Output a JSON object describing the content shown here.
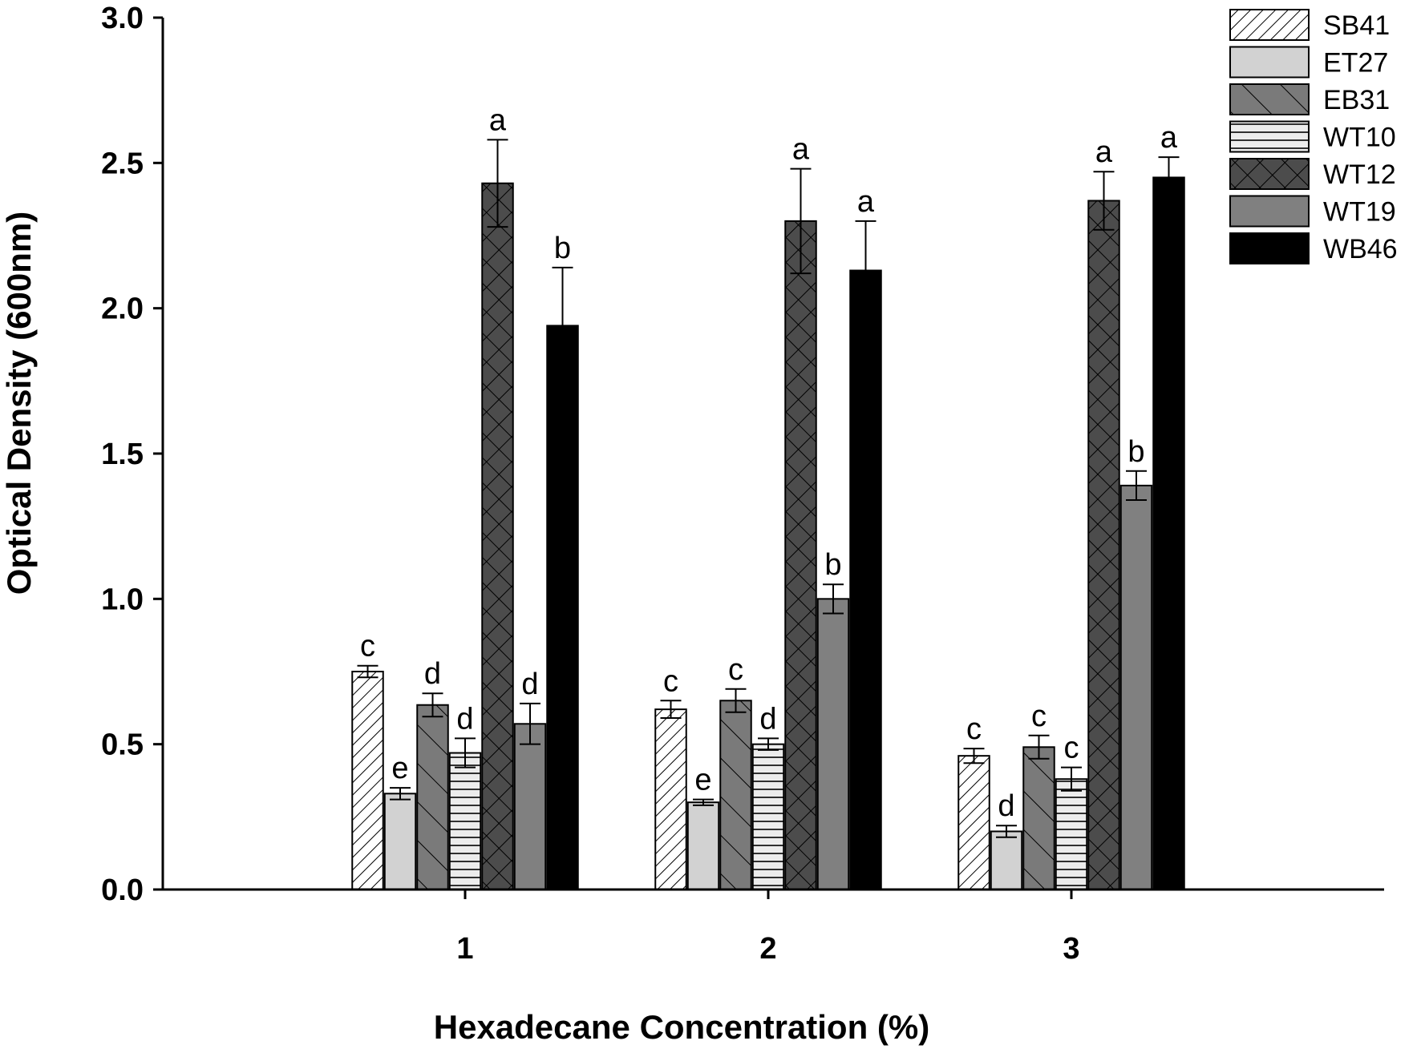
{
  "chart_data": {
    "type": "bar",
    "title": "",
    "xlabel": "Hexadecane Concentration (%)",
    "ylabel": "Optical Density (600nm)",
    "ylim": [
      0,
      3.0
    ],
    "yticks": [
      "0.0",
      "0.5",
      "1.0",
      "1.5",
      "2.0",
      "2.5",
      "3.0"
    ],
    "categories": [
      "1",
      "2",
      "3"
    ],
    "grid": false,
    "legend_position": "top-right",
    "series": [
      {
        "name": "SB41",
        "pattern": "diagonal-up",
        "values": [
          0.75,
          0.62,
          0.46
        ],
        "errors": [
          0.02,
          0.03,
          0.025
        ],
        "letters": [
          "c",
          "c",
          "c"
        ]
      },
      {
        "name": "ET27",
        "pattern": "light-solid",
        "values": [
          0.33,
          0.3,
          0.2
        ],
        "errors": [
          0.02,
          0.01,
          0.02
        ],
        "letters": [
          "e",
          "e",
          "d"
        ]
      },
      {
        "name": "EB31",
        "pattern": "diagonal-down-dark",
        "values": [
          0.635,
          0.65,
          0.49
        ],
        "errors": [
          0.04,
          0.04,
          0.04
        ],
        "letters": [
          "d",
          "c",
          "c"
        ]
      },
      {
        "name": "WT10",
        "pattern": "horizontal-lines",
        "values": [
          0.47,
          0.5,
          0.38
        ],
        "errors": [
          0.05,
          0.02,
          0.04
        ],
        "letters": [
          "d",
          "d",
          "c"
        ]
      },
      {
        "name": "WT12",
        "pattern": "crosshatch",
        "values": [
          2.43,
          2.3,
          2.37
        ],
        "errors": [
          0.15,
          0.18,
          0.1
        ],
        "letters": [
          "a",
          "a",
          "a"
        ]
      },
      {
        "name": "WT19",
        "pattern": "dark-solid",
        "values": [
          0.57,
          1.0,
          1.39
        ],
        "errors": [
          0.07,
          0.05,
          0.05
        ],
        "letters": [
          "d",
          "b",
          "b"
        ]
      },
      {
        "name": "WB46",
        "pattern": "black-solid",
        "values": [
          1.94,
          2.13,
          2.45
        ],
        "errors": [
          0.2,
          0.17,
          0.07
        ],
        "letters": [
          "b",
          "a",
          "a"
        ]
      }
    ],
    "colors": {
      "axis": "#000000",
      "et27_fill": "#d2d2d2",
      "eb31_fill": "#7a7a7a",
      "wt10_fill": "#ececec",
      "wt12_fill": "#4c4c4c",
      "wt19_fill": "#808080",
      "wb46_fill": "#000000"
    }
  }
}
